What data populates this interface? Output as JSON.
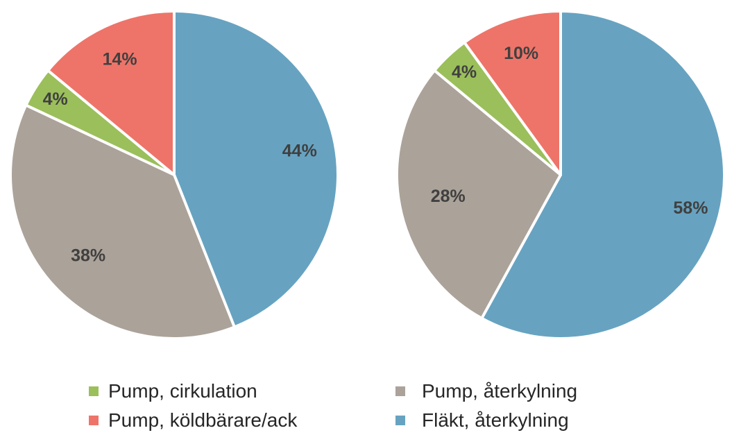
{
  "chart_data": [
    {
      "type": "pie",
      "categories": [
        "Fläkt, återkylning",
        "Pump, återkylning",
        "Pump, cirkulation",
        "Pump, köldbärare/ack"
      ],
      "values": [
        44,
        38,
        4,
        14
      ],
      "labels": [
        "44%",
        "38%",
        "4%",
        "14%"
      ],
      "colors": [
        "#67a3c1",
        "#aba299",
        "#9bbf5b",
        "#ee7469"
      ]
    },
    {
      "type": "pie",
      "categories": [
        "Fläkt, återkylning",
        "Pump, återkylning",
        "Pump, cirkulation",
        "Pump, köldbärare/ack"
      ],
      "values": [
        58,
        28,
        4,
        10
      ],
      "labels": [
        "58%",
        "28%",
        "4%",
        "10%"
      ],
      "colors": [
        "#67a3c1",
        "#aba299",
        "#9bbf5b",
        "#ee7469"
      ]
    }
  ],
  "legend": {
    "placement": "bottom",
    "items": [
      {
        "label": "Pump, cirkulation",
        "color": "#9bbf5b"
      },
      {
        "label": "Pump, återkylning",
        "color": "#aba299"
      },
      {
        "label": "Pump, köldbärare/ack",
        "color": "#ee7469"
      },
      {
        "label": "Fläkt, återkylning",
        "color": "#67a3c1"
      }
    ]
  }
}
